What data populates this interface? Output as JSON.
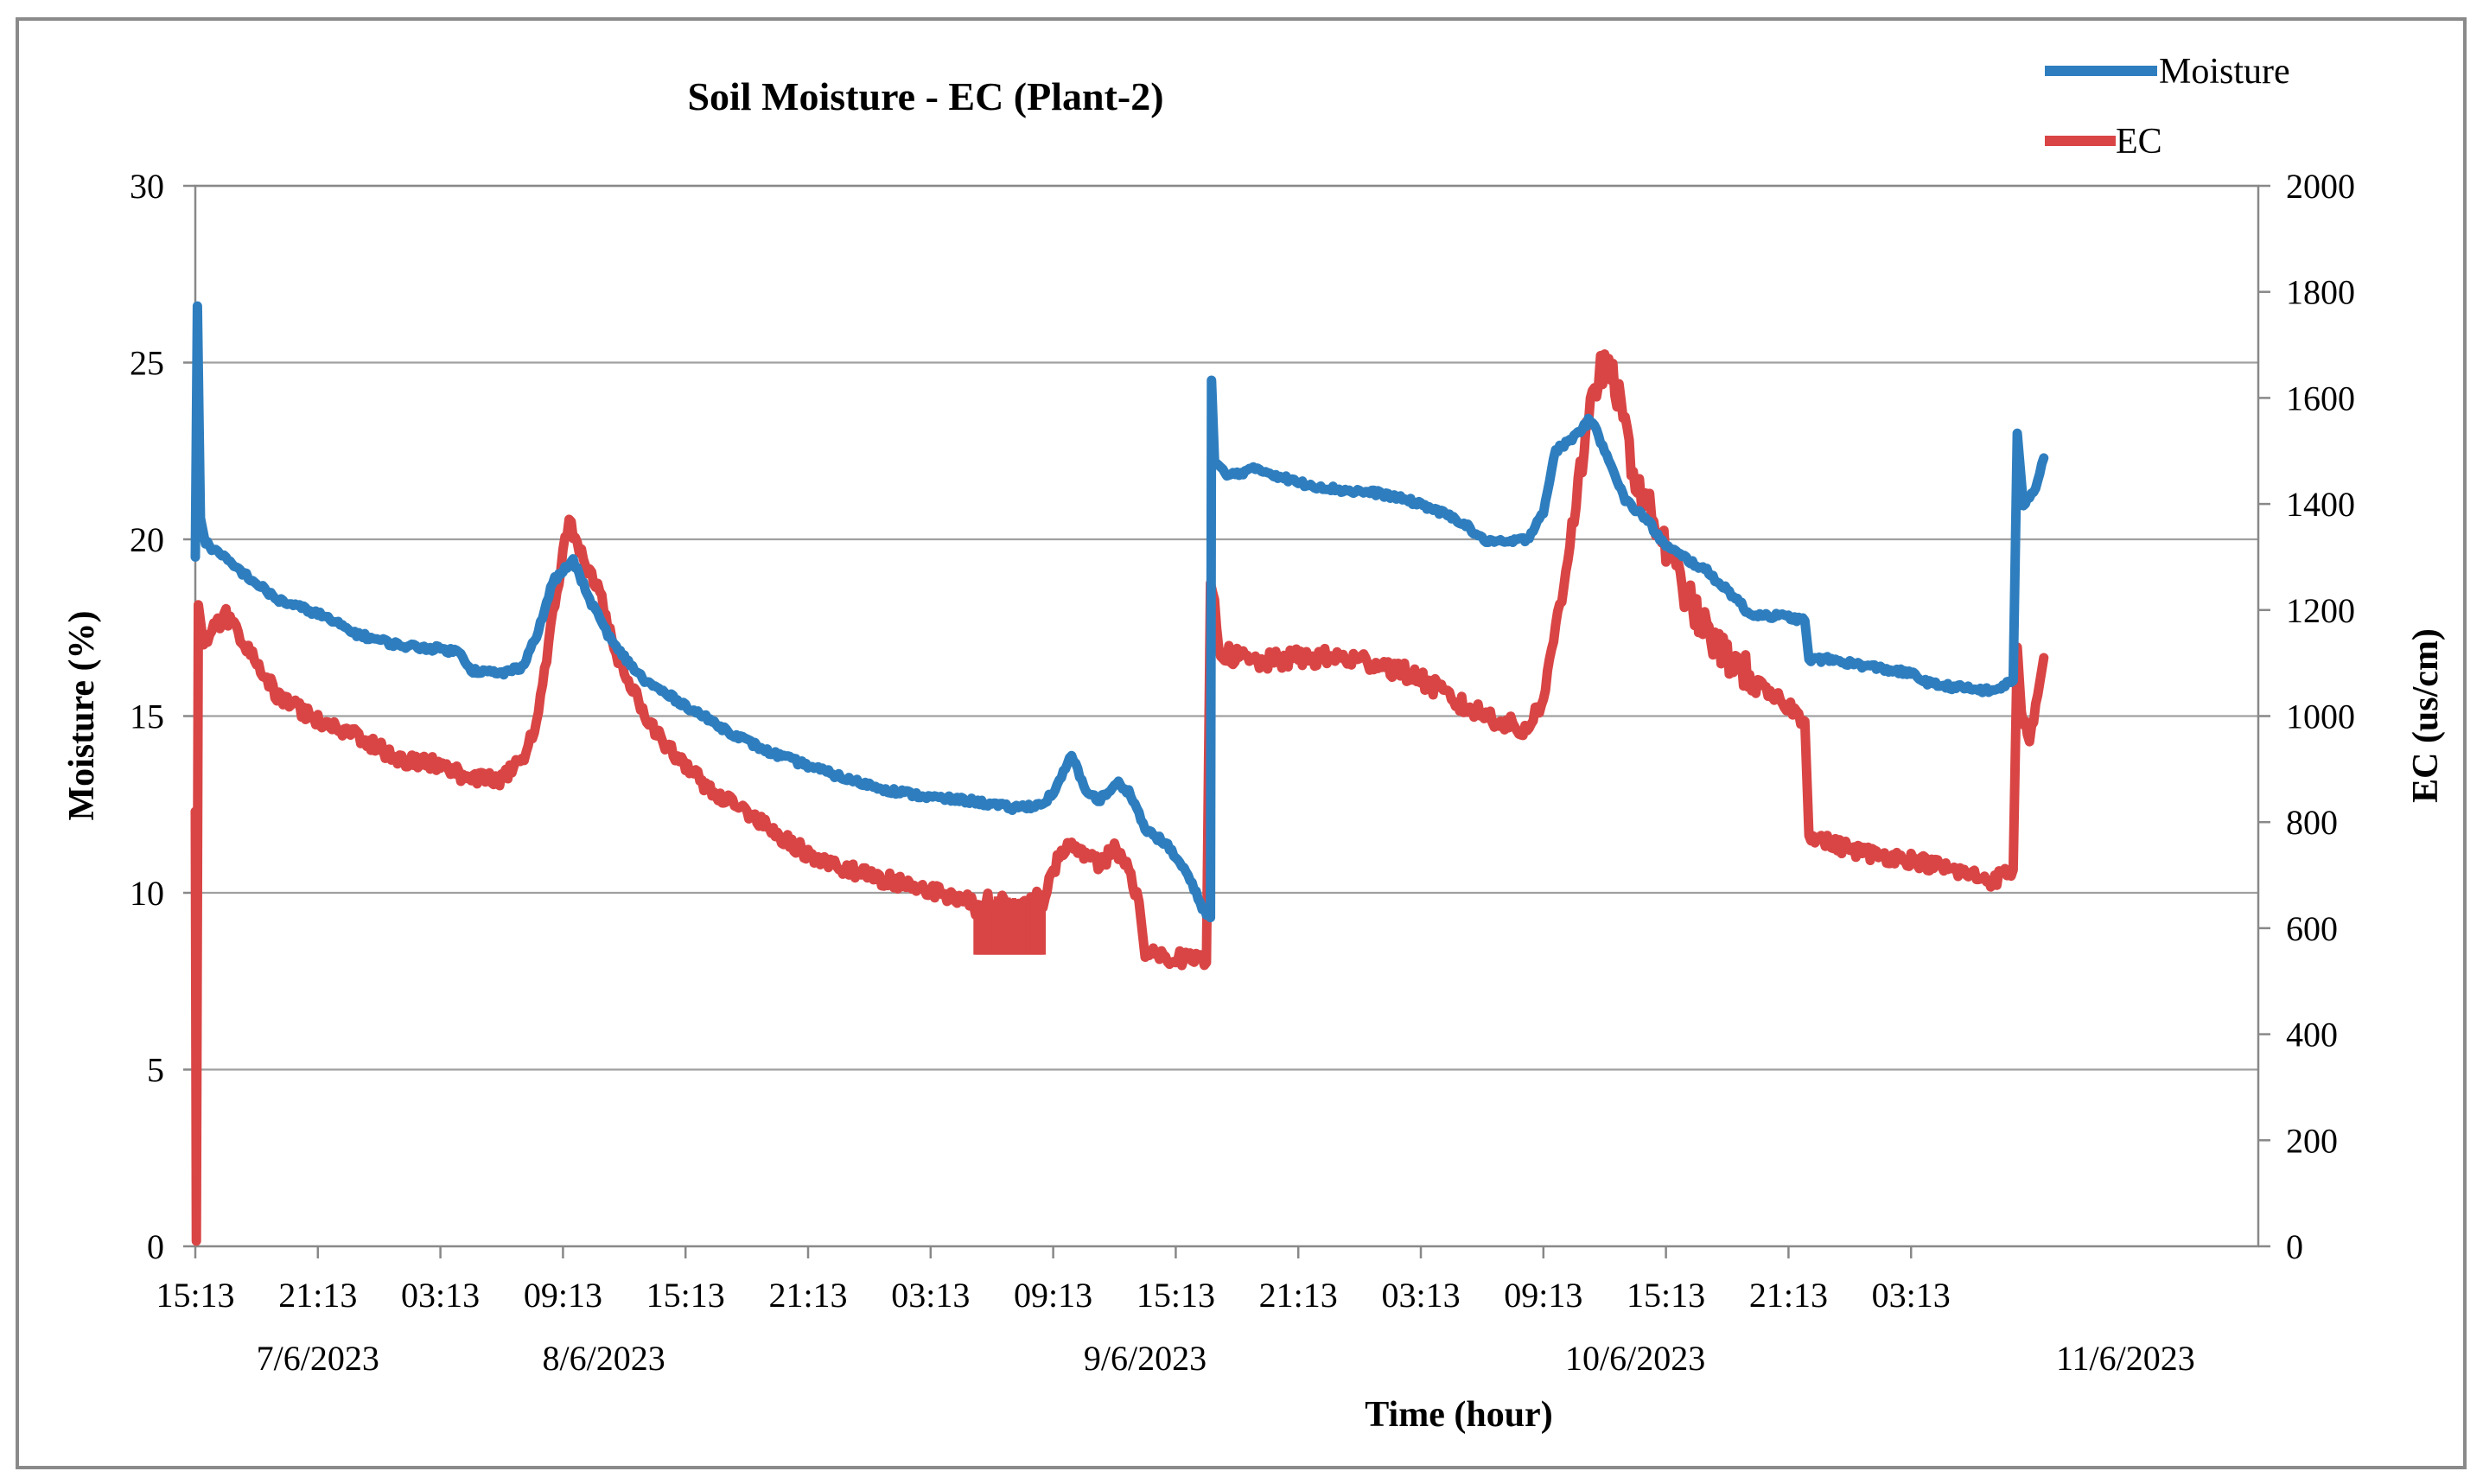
{
  "chart_data": {
    "type": "line",
    "title": "Soil Moisture - EC (Plant-2)",
    "xlabel": "Time (hour)",
    "ylabel": "Moisture (%)",
    "y2label": "EC (us/cm)",
    "x_unit": "hours since 15:13 on 7/6/2023",
    "xlim": [
      0,
      101
    ],
    "ylim": [
      0,
      30
    ],
    "y2lim": [
      0,
      2000
    ],
    "yticks": [
      0,
      5,
      10,
      15,
      20,
      25,
      30
    ],
    "y2ticks": [
      0,
      200,
      400,
      600,
      800,
      1000,
      1200,
      1400,
      1600,
      1800,
      2000
    ],
    "grid": true,
    "legend_position": "top-right",
    "x_tick_labels": [
      {
        "x": 0,
        "label": "15:13"
      },
      {
        "x": 6,
        "label": "21:13"
      },
      {
        "x": 12,
        "label": "03:13"
      },
      {
        "x": 18,
        "label": "09:13"
      },
      {
        "x": 24,
        "label": "15:13"
      },
      {
        "x": 30,
        "label": "21:13"
      },
      {
        "x": 36,
        "label": "03:13"
      },
      {
        "x": 42,
        "label": "09:13"
      },
      {
        "x": 48,
        "label": "15:13"
      },
      {
        "x": 54,
        "label": "21:13"
      },
      {
        "x": 60,
        "label": "03:13"
      },
      {
        "x": 66,
        "label": "09:13"
      },
      {
        "x": 72,
        "label": "15:13"
      },
      {
        "x": 78,
        "label": "21:13"
      },
      {
        "x": 84,
        "label": "03:13"
      }
    ],
    "date_labels": [
      {
        "x": 6,
        "label": "7/6/2023"
      },
      {
        "x": 20,
        "label": "8/6/2023"
      },
      {
        "x": 46.5,
        "label": "9/6/2023"
      },
      {
        "x": 70.5,
        "label": "10/6/2023"
      },
      {
        "x": 94.5,
        "label": "11/6/2023"
      }
    ],
    "series": [
      {
        "name": "Moisture",
        "axis": "left",
        "color": "#2e7ebf",
        "points": [
          [
            0,
            19.5
          ],
          [
            0.1,
            26.6
          ],
          [
            0.25,
            20.6
          ],
          [
            0.5,
            19.9
          ],
          [
            2,
            19.2
          ],
          [
            4,
            18.3
          ],
          [
            6,
            17.9
          ],
          [
            8,
            17.3
          ],
          [
            10,
            17.0
          ],
          [
            12,
            16.9
          ],
          [
            13,
            16.8
          ],
          [
            13.5,
            16.3
          ],
          [
            15,
            16.2
          ],
          [
            16,
            16.4
          ],
          [
            16.8,
            17.4
          ],
          [
            17.5,
            18.8
          ],
          [
            18.5,
            19.4
          ],
          [
            19.3,
            18.3
          ],
          [
            20.5,
            17.0
          ],
          [
            22,
            16.0
          ],
          [
            24,
            15.3
          ],
          [
            26,
            14.6
          ],
          [
            28,
            14.0
          ],
          [
            30,
            13.6
          ],
          [
            32,
            13.2
          ],
          [
            34,
            12.9
          ],
          [
            36,
            12.7
          ],
          [
            38,
            12.6
          ],
          [
            40,
            12.4
          ],
          [
            41.5,
            12.5
          ],
          [
            42.2,
            13.0
          ],
          [
            42.9,
            13.9
          ],
          [
            43.5,
            13.0
          ],
          [
            44.2,
            12.6
          ],
          [
            45.2,
            13.1
          ],
          [
            45.8,
            12.8
          ],
          [
            46.5,
            11.8
          ],
          [
            47.5,
            11.4
          ],
          [
            48.5,
            10.6
          ],
          [
            49.3,
            9.6
          ],
          [
            49.7,
            9.3
          ],
          [
            49.75,
            24.5
          ],
          [
            49.9,
            22.2
          ],
          [
            50.5,
            21.8
          ],
          [
            52,
            22.0
          ],
          [
            54,
            21.6
          ],
          [
            56,
            21.4
          ],
          [
            58,
            21.3
          ],
          [
            60,
            21.0
          ],
          [
            62,
            20.5
          ],
          [
            63,
            20.0
          ],
          [
            64,
            19.9
          ],
          [
            65.2,
            20.0
          ],
          [
            66,
            20.8
          ],
          [
            66.6,
            22.5
          ],
          [
            67.5,
            22.9
          ],
          [
            68.3,
            23.4
          ],
          [
            69.2,
            22.3
          ],
          [
            70,
            21.1
          ],
          [
            71,
            20.6
          ],
          [
            72,
            19.8
          ],
          [
            74,
            19.1
          ],
          [
            75.5,
            18.3
          ],
          [
            76,
            17.9
          ],
          [
            78,
            17.8
          ],
          [
            78.8,
            17.7
          ],
          [
            79,
            16.6
          ],
          [
            80,
            16.6
          ],
          [
            82,
            16.4
          ],
          [
            84,
            16.2
          ],
          [
            85,
            15.9
          ],
          [
            88,
            15.7
          ],
          [
            89,
            16.0
          ],
          [
            89.2,
            23.0
          ],
          [
            89.5,
            21.0
          ],
          [
            90,
            21.3
          ],
          [
            90.5,
            22.3
          ]
        ]
      },
      {
        "name": "EC",
        "axis": "right",
        "color": "#d94545",
        "points": [
          [
            0,
            820
          ],
          [
            0.05,
            10
          ],
          [
            0.15,
            1210
          ],
          [
            0.4,
            1140
          ],
          [
            1.5,
            1190
          ],
          [
            2.5,
            1130
          ],
          [
            4,
            1040
          ],
          [
            6,
            990
          ],
          [
            8,
            960
          ],
          [
            10,
            920
          ],
          [
            12,
            910
          ],
          [
            13,
            890
          ],
          [
            15,
            880
          ],
          [
            16,
            920
          ],
          [
            16.8,
            1000
          ],
          [
            17.5,
            1190
          ],
          [
            18.3,
            1370
          ],
          [
            19,
            1290
          ],
          [
            19.8,
            1230
          ],
          [
            20.5,
            1130
          ],
          [
            22,
            1000
          ],
          [
            24,
            900
          ],
          [
            26,
            840
          ],
          [
            28,
            790
          ],
          [
            30,
            740
          ],
          [
            32,
            710
          ],
          [
            34,
            690
          ],
          [
            36,
            670
          ],
          [
            38,
            650
          ],
          [
            40,
            630
          ],
          [
            41.5,
            650
          ],
          [
            42,
            710
          ],
          [
            42.8,
            770
          ],
          [
            43.5,
            740
          ],
          [
            44.3,
            720
          ],
          [
            45,
            750
          ],
          [
            45.8,
            700
          ],
          [
            46.2,
            650
          ],
          [
            46.5,
            550
          ],
          [
            48,
            545
          ],
          [
            49.5,
            535
          ],
          [
            49.7,
            1260
          ],
          [
            50.2,
            1120
          ],
          [
            52,
            1100
          ],
          [
            54,
            1110
          ],
          [
            56,
            1110
          ],
          [
            58,
            1100
          ],
          [
            60,
            1070
          ],
          [
            62,
            1020
          ],
          [
            64,
            990
          ],
          [
            65,
            970
          ],
          [
            66,
            1030
          ],
          [
            67,
            1260
          ],
          [
            68,
            1510
          ],
          [
            68.8,
            1660
          ],
          [
            69.5,
            1630
          ],
          [
            70.5,
            1450
          ],
          [
            71.5,
            1360
          ],
          [
            72.5,
            1270
          ],
          [
            73.5,
            1190
          ],
          [
            74.5,
            1130
          ],
          [
            76,
            1080
          ],
          [
            77,
            1040
          ],
          [
            78,
            1020
          ],
          [
            78.8,
            990
          ],
          [
            79,
            780
          ],
          [
            80,
            760
          ],
          [
            82,
            740
          ],
          [
            84,
            730
          ],
          [
            86,
            710
          ],
          [
            88,
            690
          ],
          [
            89,
            710
          ],
          [
            89.2,
            1130
          ],
          [
            89.4,
            1000
          ],
          [
            89.8,
            960
          ],
          [
            90.2,
            1040
          ],
          [
            90.5,
            1110
          ]
        ]
      }
    ]
  }
}
